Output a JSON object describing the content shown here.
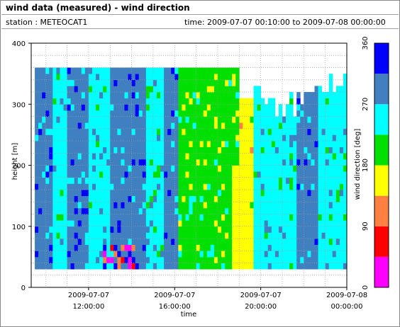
{
  "window": {
    "title": "wind data (measured) - wind direction",
    "station": "station : METEOCAT1",
    "time_range": "time: 2009-07-07 00:10:00 to 2009-07-08 00:00:00"
  },
  "chart_data": {
    "type": "heatmap",
    "xlabel": "time",
    "ylabel": "height [m]",
    "colorbar_label": "wind direction [deg]",
    "xlim": [
      "2009-07-07 09:20:00",
      "2009-07-08 00:00:00"
    ],
    "ylim": [
      0,
      400
    ],
    "grid": true,
    "x_ticks": [
      {
        "value": "2009-07-07 12:00:00",
        "label1": "2009-07-07",
        "label2": "12:00:00"
      },
      {
        "value": "2009-07-07 16:00:00",
        "label1": "2009-07-07",
        "label2": "16:00:00"
      },
      {
        "value": "2009-07-07 20:00:00",
        "label1": "2009-07-07",
        "label2": "20:00:00"
      },
      {
        "value": "2009-07-08 00:00:00",
        "label1": "2009-07-08",
        "label2": "00:00:00"
      }
    ],
    "y_ticks": [
      "0",
      "100",
      "200",
      "300",
      "400"
    ],
    "colorbar_ticks": [
      "0",
      "90",
      "180",
      "270",
      "360"
    ],
    "color_bins": [
      {
        "range": [
          0,
          45
        ],
        "color": "#ff00ff"
      },
      {
        "range": [
          45,
          90
        ],
        "color": "#ff0000"
      },
      {
        "range": [
          90,
          135
        ],
        "color": "#ff8040"
      },
      {
        "range": [
          135,
          180
        ],
        "color": "#ffff00"
      },
      {
        "range": [
          180,
          225
        ],
        "color": "#00e000"
      },
      {
        "range": [
          225,
          270
        ],
        "color": "#00ffff"
      },
      {
        "range": [
          270,
          315
        ],
        "color": "#4080c0"
      },
      {
        "range": [
          315,
          360
        ],
        "color": "#0000ff"
      }
    ],
    "height_bins_m": {
      "start": 30,
      "end": 360,
      "step": 10
    },
    "time_columns": [
      {
        "time": "09:50",
        "base": "270-315",
        "top_height": 360
      },
      {
        "time": "10:30",
        "base": "225-270",
        "top_height": 360
      },
      {
        "time": "11:20",
        "base": "270-315",
        "top_height": 360
      },
      {
        "time": "12:30",
        "base": "225-270",
        "top_height": 360
      },
      {
        "time": "13:10",
        "base": "270-315",
        "top_height": 360
      },
      {
        "time": "14:00",
        "base": "270-315",
        "top_height": 360
      },
      {
        "time": "15:00",
        "base": "225-270",
        "top_height": 360
      },
      {
        "time": "15:40",
        "base": "270-315",
        "top_height": 360
      },
      {
        "time": "16:20",
        "base": "180-225",
        "top_height": 360
      },
      {
        "time": "17:00",
        "base": "180-225",
        "top_height": 360
      },
      {
        "time": "17:50",
        "base": "180-225",
        "top_height": 360
      },
      {
        "time": "18:30",
        "base": "180-225",
        "top_height": 360
      },
      {
        "time": "19:10",
        "base": "135-180",
        "top_height": 310
      },
      {
        "time": "20:00",
        "base": "225-270",
        "top_height": 330
      },
      {
        "time": "21:00",
        "base": "225-270",
        "top_height": 320
      },
      {
        "time": "22:00",
        "base": "270-315",
        "top_height": 330
      },
      {
        "time": "23:00",
        "base": "225-270",
        "top_height": 350
      }
    ]
  }
}
